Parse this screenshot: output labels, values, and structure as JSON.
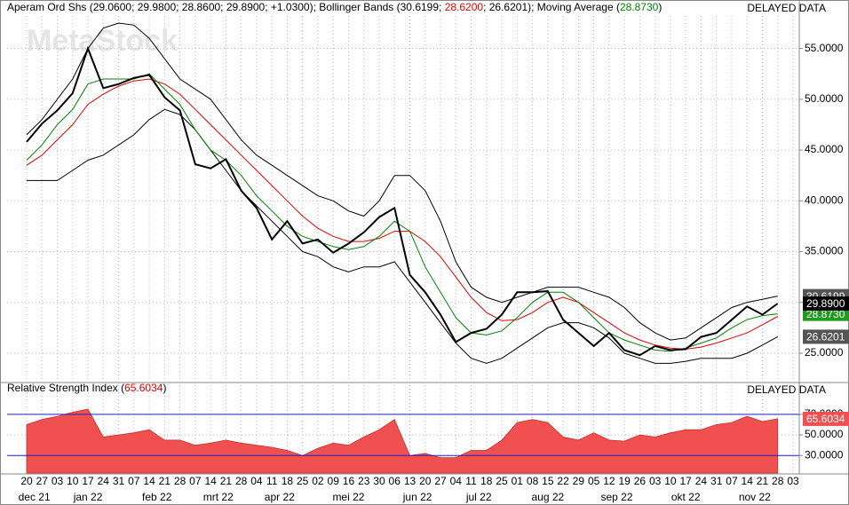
{
  "chart_data": [
    {
      "type": "line",
      "header": [
        {
          "text": "Aperam Ord Shs (29.0600; 29.9800; 28.8600; 29.8900; +1.0300); Bollinger Bands (30.6199; ",
          "color": "#000000"
        },
        {
          "text": "28.6200",
          "color": "#e00000"
        },
        {
          "text": "; 26.6201); Moving Average (",
          "color": "#000000"
        },
        {
          "text": "28.8730",
          "color": "#008000"
        },
        {
          "text": ")",
          "color": "#000000"
        }
      ],
      "status": "DELAYED DATA",
      "watermark": "MetaStock",
      "categories": [
        "20",
        "27",
        "03",
        "10",
        "17",
        "24",
        "31",
        "07",
        "14",
        "21",
        "28",
        "07",
        "14",
        "21",
        "28",
        "04",
        "11",
        "18",
        "25",
        "02",
        "09",
        "16",
        "23",
        "30",
        "06",
        "13",
        "20",
        "27",
        "04",
        "11",
        "18",
        "25",
        "01",
        "08",
        "15",
        "22",
        "29",
        "05",
        "12",
        "19",
        "26",
        "03",
        "10",
        "17",
        "24",
        "31",
        "07",
        "14",
        "21",
        "28",
        "03"
      ],
      "x_groups": [
        {
          "label": "dec 21",
          "count": 2
        },
        {
          "label": "jan 22",
          "count": 5
        },
        {
          "label": "feb 22",
          "count": 4
        },
        {
          "label": "mrt 22",
          "count": 4
        },
        {
          "label": "apr 22",
          "count": 4
        },
        {
          "label": "mei 22",
          "count": 5
        },
        {
          "label": "jun 22",
          "count": 4
        },
        {
          "label": "jul 22",
          "count": 4
        },
        {
          "label": "aug 22",
          "count": 5
        },
        {
          "label": "sep 22",
          "count": 4
        },
        {
          "label": "okt 22",
          "count": 5
        },
        {
          "label": "nov 22",
          "count": 4
        },
        {
          "label": "",
          "count": 1
        }
      ],
      "ylim": [
        22.2,
        58.2
      ],
      "yticks": [
        {
          "value": 25,
          "label": "25.0000"
        },
        {
          "value": 30,
          "label": "30.0000"
        },
        {
          "value": 35,
          "label": "35.0000"
        },
        {
          "value": 40,
          "label": "40.0000"
        },
        {
          "value": 45,
          "label": "45.0000"
        },
        {
          "value": 50,
          "label": "50.0000"
        },
        {
          "value": 55,
          "label": "55.0000"
        }
      ],
      "grid": true,
      "series": [
        {
          "color": "#000000",
          "width": 1,
          "badge_color": "#555555",
          "last_label": "30.6199",
          "values": [
            46.5,
            48,
            50,
            52,
            55,
            57,
            57.5,
            57.3,
            56,
            54,
            52,
            51,
            50,
            48,
            46,
            44.5,
            43.5,
            42.5,
            41.5,
            40.5,
            40,
            39,
            38.5,
            40,
            42.5,
            42.5,
            41,
            38,
            34,
            31.5,
            30.5,
            30,
            30.5,
            31,
            31.5,
            31.5,
            31.5,
            31,
            30.5,
            29.5,
            28,
            27,
            26.3,
            26.5,
            27.5,
            28.5,
            29.5,
            30,
            30.3,
            30.6199,
            null
          ]
        },
        {
          "color": "#000000",
          "width": 1,
          "badge_color": "#555555",
          "last_label": "26.6201",
          "values": [
            42,
            42,
            42,
            43,
            44,
            44.5,
            45.5,
            46.5,
            48,
            49,
            48.5,
            47,
            45,
            43,
            41,
            39.5,
            38,
            36.5,
            35,
            34.5,
            33.5,
            33,
            33.5,
            33.5,
            34,
            32,
            30,
            28,
            26,
            24.5,
            24,
            24.5,
            25.5,
            26.5,
            27.5,
            28,
            28,
            27.5,
            26.5,
            25,
            24.5,
            24,
            24,
            24.2,
            24.5,
            24.5,
            24.5,
            25,
            25.8,
            26.6201,
            null
          ]
        },
        {
          "color": "#e00000",
          "width": 1,
          "values": [
            43.5,
            44.5,
            46,
            47.5,
            49.5,
            50.5,
            51.3,
            51.8,
            52,
            51.5,
            50.5,
            49,
            47.5,
            46,
            44.5,
            43,
            41.5,
            40,
            38.5,
            37.3,
            36.5,
            36,
            36,
            36.3,
            37,
            37,
            36,
            34.5,
            32.5,
            30.5,
            29,
            28.2,
            28.3,
            29,
            30,
            30.5,
            30,
            29,
            28,
            27,
            26.3,
            25.8,
            25.5,
            25.4,
            25.6,
            26,
            26.5,
            27,
            27.8,
            28.62,
            null
          ]
        },
        {
          "color": "#008000",
          "width": 1,
          "badge_color": "#1f9a1f",
          "last_label": "28.8730",
          "values": [
            44,
            45.5,
            47.5,
            49,
            51.5,
            52,
            52,
            52,
            52.5,
            51,
            49.5,
            47,
            45,
            44,
            42.5,
            40.5,
            39,
            37.5,
            36.5,
            36,
            35.5,
            35.2,
            35.5,
            36.5,
            38,
            37,
            33.5,
            31,
            28.5,
            27,
            26.8,
            27.2,
            28.5,
            30,
            31,
            31,
            30,
            28.5,
            27,
            26.3,
            25.8,
            25.3,
            25.2,
            25.5,
            26,
            26.5,
            27.5,
            28.3,
            28.7,
            28.873,
            null
          ]
        },
        {
          "color": "#000000",
          "width": 2,
          "badge_color": "#000000",
          "last_label": "29.8900",
          "values": [
            45.8,
            47.6,
            48.9,
            50.6,
            55,
            51.1,
            51.5,
            52.1,
            52.4,
            50.2,
            48.9,
            43.6,
            43.2,
            44.1,
            41,
            39.3,
            36.2,
            38,
            35.8,
            36.2,
            34.9,
            35.8,
            36.9,
            38.4,
            39.3,
            32.7,
            31,
            28.8,
            26.1,
            27,
            27.4,
            28.8,
            31,
            31,
            31.1,
            28.3,
            27,
            25.7,
            27,
            25.3,
            24.8,
            25.7,
            25.3,
            25.4,
            26.6,
            27,
            28.3,
            29.6,
            28.8,
            29.89,
            null
          ]
        }
      ]
    },
    {
      "type": "area",
      "title": "Relative Strength Index (",
      "title_value": "65.6034",
      "title_end": ")",
      "status": "DELAYED DATA",
      "color": "#f05050",
      "ylim": [
        13,
        100
      ],
      "yticks": [
        {
          "value": 30,
          "label": "30.0000"
        },
        {
          "value": 50,
          "label": "50.0000"
        },
        {
          "value": 70,
          "label": "70.0000"
        }
      ],
      "reference_lines": [
        30,
        70
      ],
      "reference_color": "#2020c0",
      "last_label": "65.6034",
      "values": [
        60,
        65,
        68,
        72,
        75,
        48,
        50,
        52,
        55,
        45,
        45,
        40,
        42,
        45,
        42,
        40,
        38,
        35,
        30,
        37,
        42,
        40,
        48,
        55,
        65,
        30,
        32,
        28,
        28,
        35,
        35,
        45,
        62,
        65,
        62,
        48,
        45,
        52,
        45,
        44,
        50,
        48,
        52,
        55,
        55,
        60,
        62,
        68,
        63,
        65.6034,
        null
      ]
    }
  ]
}
